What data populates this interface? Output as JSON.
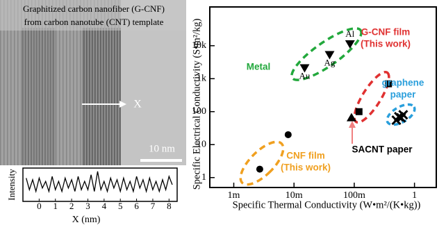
{
  "image": {
    "caption": [
      "Graphitized carbon nanofiber (G-CNF)",
      "from carbon nanotube (CNT) template"
    ],
    "arrow_label": "X",
    "scale_bar": "10 nm"
  },
  "chart_data": [
    {
      "type": "line",
      "xlabel": "X (nm)",
      "ylabel": "Intensity",
      "color": "#000000",
      "xlim": [
        -1,
        8.5
      ],
      "ylim": [
        0,
        1
      ],
      "xticks": [
        0,
        1,
        2,
        3,
        4,
        5,
        6,
        7,
        8
      ],
      "x": [
        -0.8,
        -0.6,
        -0.4,
        -0.2,
        0,
        0.2,
        0.4,
        0.6,
        0.8,
        1,
        1.2,
        1.4,
        1.6,
        1.8,
        2,
        2.2,
        2.4,
        2.6,
        2.8,
        3,
        3.2,
        3.4,
        3.6,
        3.8,
        4,
        4.2,
        4.4,
        4.6,
        4.8,
        5,
        5.2,
        5.4,
        5.6,
        5.8,
        6,
        6.2,
        6.4,
        6.6,
        6.8,
        7,
        7.2,
        7.4,
        7.6,
        7.8,
        8,
        8.2
      ],
      "values": [
        0.7,
        0.35,
        0.65,
        0.3,
        0.7,
        0.4,
        0.6,
        0.3,
        0.75,
        0.35,
        0.6,
        0.3,
        0.7,
        0.4,
        0.65,
        0.3,
        0.75,
        0.35,
        0.6,
        0.35,
        0.8,
        0.3,
        0.9,
        0.35,
        0.6,
        0.3,
        0.7,
        0.4,
        0.65,
        0.3,
        0.7,
        0.35,
        0.6,
        0.3,
        0.75,
        0.4,
        0.65,
        0.3,
        0.7,
        0.35,
        0.6,
        0.3,
        0.65,
        0.35,
        0.75,
        0.5
      ]
    },
    {
      "type": "scatter",
      "xlabel": "Specific Thermal Conductivity (W•m²/(K•kg))",
      "ylabel": "Specific Electrical Conductivity (S•m²/kg)",
      "xscale": "log",
      "yscale": "log",
      "xlim": [
        0.0004,
        2.3
      ],
      "ylim": [
        0.5,
        150000
      ],
      "xticks": [
        {
          "value": 0.001,
          "label": "1m"
        },
        {
          "value": 0.01,
          "label": "10m"
        },
        {
          "value": 0.1,
          "label": "100m"
        },
        1
      ],
      "yticks": [
        1,
        10,
        100,
        {
          "value": 1000,
          "label": "1k"
        },
        {
          "value": 10000,
          "label": "10k"
        }
      ],
      "series": [
        {
          "marker": "circle",
          "color": "#000000",
          "x": [
            0.0027,
            0.008
          ],
          "values": [
            1.8,
            20
          ]
        },
        {
          "marker": "square",
          "color": "#000000",
          "x": [
            0.12,
            0.37
          ],
          "values": [
            100,
            700
          ]
        },
        {
          "marker": "triangle-up",
          "color": "#000000",
          "x": [
            0.09
          ],
          "values": [
            65
          ]
        },
        {
          "marker": "triangle-down",
          "color": "#000000",
          "x": [
            0.015,
            0.039,
            0.085
          ],
          "values": [
            2150,
            5400,
            11500
          ],
          "point_labels": [
            "Au",
            "Ag",
            "Al"
          ]
        },
        {
          "marker": "cross",
          "color": "#000000",
          "x": [
            0.5,
            0.55,
            0.6,
            0.65
          ],
          "values": [
            55,
            70,
            65,
            80
          ]
        }
      ],
      "annotations": [
        {
          "lines": [
            "Metal"
          ],
          "color": "#22a83c"
        },
        {
          "lines": [
            "G-CNF film",
            "(This work)"
          ],
          "color": "#e03131"
        },
        {
          "lines": [
            "graphene",
            "paper"
          ],
          "color": "#2a9fdc"
        },
        {
          "lines": [
            "SACNT paper"
          ],
          "color": "#000000"
        },
        {
          "lines": [
            "CNF film",
            "(This work)"
          ],
          "color": "#f0a020"
        }
      ]
    }
  ]
}
